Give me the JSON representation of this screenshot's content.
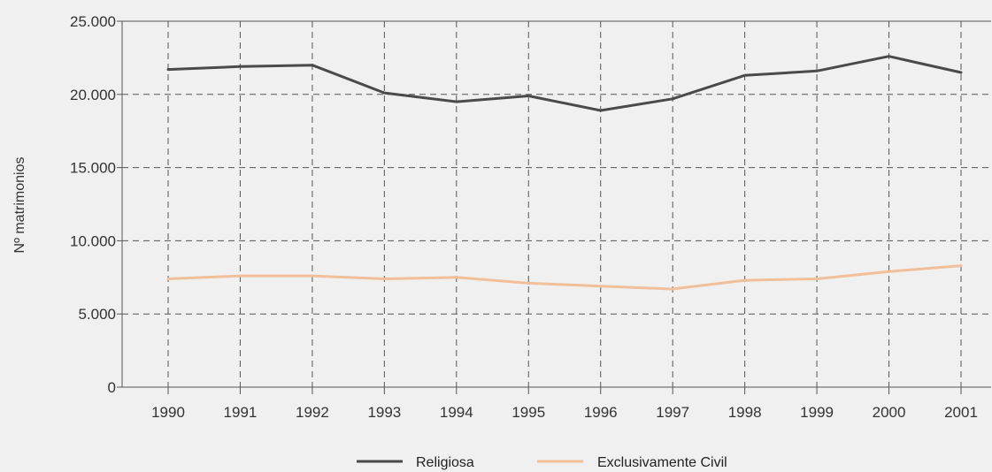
{
  "chart_data": {
    "type": "line",
    "title": "",
    "xlabel": "",
    "ylabel": "Nº matrimonios",
    "categories": [
      "1990",
      "1991",
      "1992",
      "1993",
      "1994",
      "1995",
      "1996",
      "1997",
      "1998",
      "1999",
      "2000",
      "2001"
    ],
    "ylim": [
      0,
      25000
    ],
    "yticks": [
      0,
      5000,
      10000,
      15000,
      20000,
      25000
    ],
    "ytick_labels": [
      "0",
      "5.000",
      "10.000",
      "15.000",
      "20.000",
      "25.000"
    ],
    "grid": true,
    "legend_position": "bottom",
    "series": [
      {
        "name": "Religiosa",
        "color": "#4a4a4a",
        "values": [
          21700,
          21900,
          22000,
          20100,
          19500,
          19900,
          18900,
          19700,
          21300,
          21600,
          22600,
          21500
        ]
      },
      {
        "name": "Exclusivamente Civil",
        "color": "#f2bf9a",
        "values": [
          7400,
          7600,
          7600,
          7400,
          7500,
          7100,
          6900,
          6700,
          7300,
          7400,
          7900,
          8300
        ]
      }
    ]
  }
}
